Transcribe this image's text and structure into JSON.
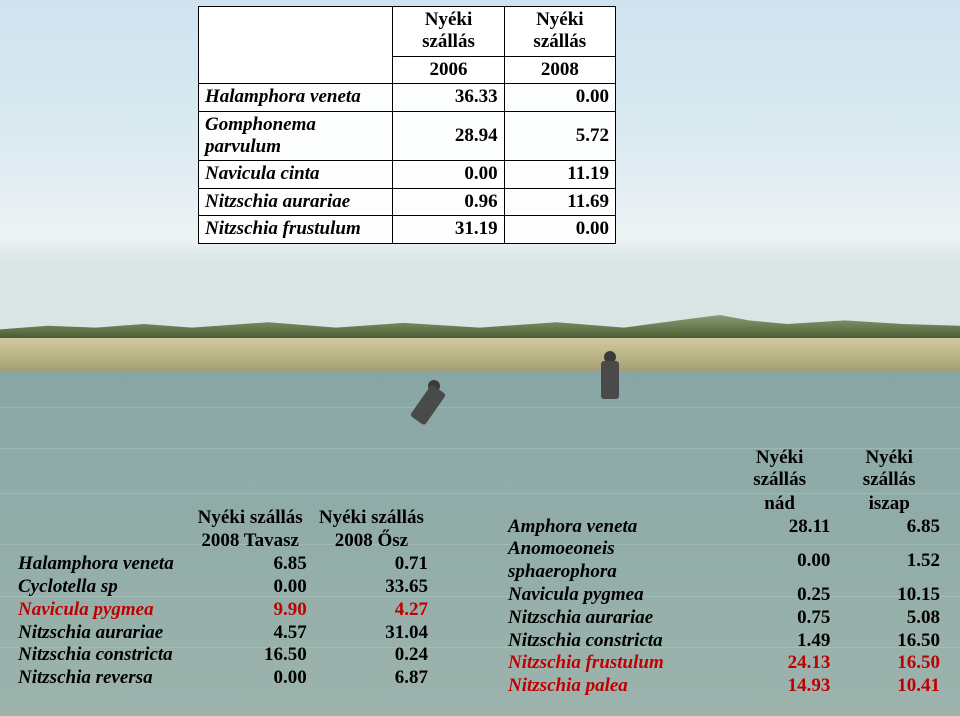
{
  "topTable": {
    "headers": {
      "species": "",
      "c1": [
        "Nyéki szállás",
        "2006"
      ],
      "c2": [
        "Nyéki szállás",
        "2008"
      ]
    },
    "rows": [
      {
        "name": "Halamphora veneta",
        "c1": "36.33",
        "c2": "0.00"
      },
      {
        "name": "Gomphonema parvulum",
        "c1": "28.94",
        "c2": "5.72"
      },
      {
        "name": "Navicula cinta",
        "c1": "0.00",
        "c2": "11.19"
      },
      {
        "name": "Nitzschia aurariae",
        "c1": "0.96",
        "c2": "11.69"
      },
      {
        "name": "Nitzschia frustulum",
        "c1": "31.19",
        "c2": "0.00"
      }
    ]
  },
  "botLeft": {
    "headers": {
      "c1": [
        "Nyéki szállás",
        "2008 Tavasz"
      ],
      "c2": [
        "Nyéki szállás",
        "2008 Ősz"
      ]
    },
    "rows": [
      {
        "name": "Halamphora veneta",
        "c1": "6.85",
        "c2": "0.71",
        "color": "k"
      },
      {
        "name": "Cyclotella sp",
        "c1": "0.00",
        "c2": "33.65",
        "color": "k"
      },
      {
        "name": "Navicula pygmea",
        "c1": "9.90",
        "c2": "4.27",
        "color": "red"
      },
      {
        "name": "Nitzschia aurariae",
        "c1": "4.57",
        "c2": "31.04",
        "color": "k"
      },
      {
        "name": "Nitzschia constricta",
        "c1": "16.50",
        "c2": "0.24",
        "color": "k"
      },
      {
        "name": "Nitzschia reversa",
        "c1": "0.00",
        "c2": "6.87",
        "color": "k"
      }
    ]
  },
  "botRight": {
    "headers": {
      "c1": [
        "Nyéki szállás",
        "nád"
      ],
      "c2": [
        "Nyéki szállás",
        "iszap"
      ]
    },
    "rows": [
      {
        "name": "Amphora veneta",
        "c1": "28.11",
        "c2": "6.85",
        "color": "k"
      },
      {
        "name": "Anomoeoneis sphaerophora",
        "c1": "0.00",
        "c2": "1.52",
        "color": "k"
      },
      {
        "name": "Navicula pygmea",
        "c1": "0.25",
        "c2": "10.15",
        "color": "k"
      },
      {
        "name": "Nitzschia aurariae",
        "c1": "0.75",
        "c2": "5.08",
        "color": "k"
      },
      {
        "name": "Nitzschia constricta",
        "c1": "1.49",
        "c2": "16.50",
        "color": "k"
      },
      {
        "name": "Nitzschia frustulum",
        "c1": "24.13",
        "c2": "16.50",
        "color": "red"
      },
      {
        "name": "Nitzschia palea",
        "c1": "14.93",
        "c2": "10.41",
        "color": "red"
      }
    ]
  },
  "style": {
    "fontFamily": "Times New Roman",
    "fontSize": 19,
    "headerWeight": "bold",
    "cellItalic": true,
    "redHex": "#c00000",
    "blackHex": "#000000",
    "topTableBg": "rgba(255,255,255,0.93)",
    "topTableBorder": "#000000"
  }
}
